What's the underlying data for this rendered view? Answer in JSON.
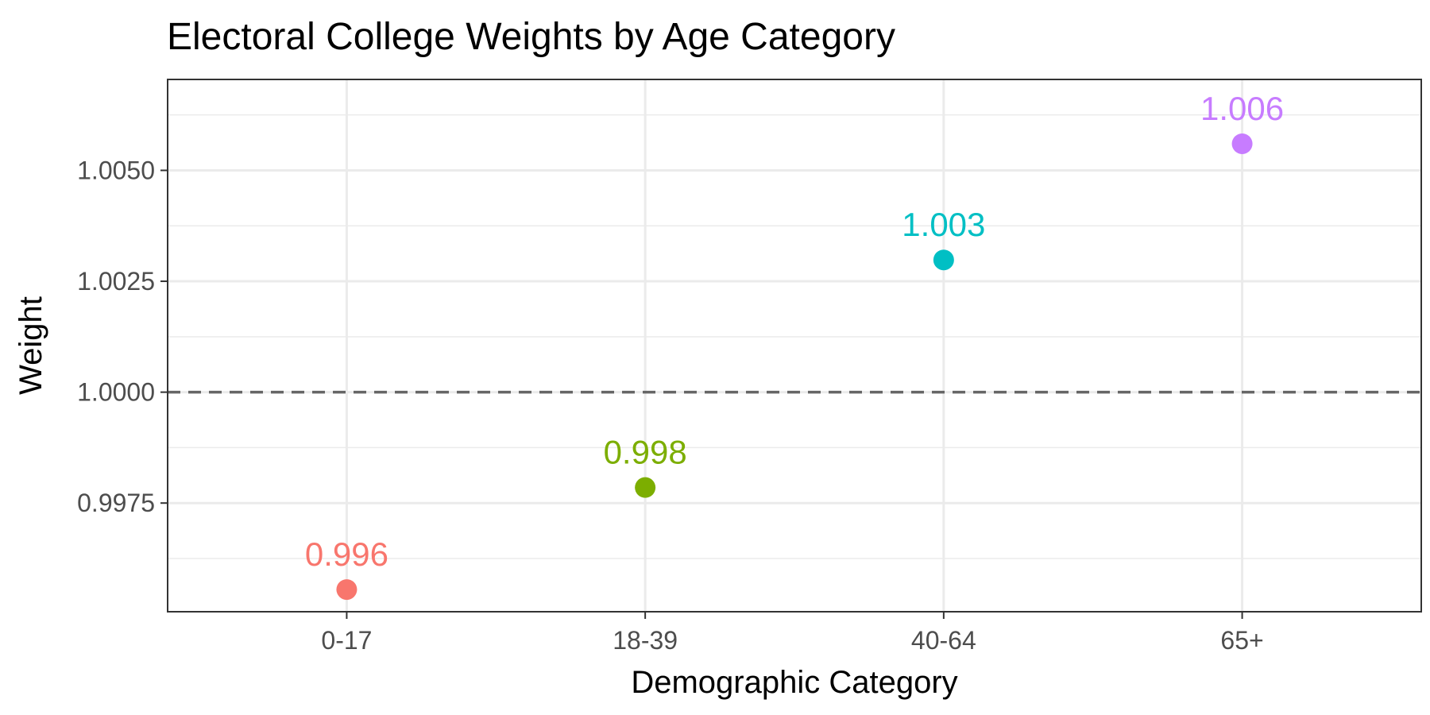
{
  "chart_data": {
    "type": "scatter",
    "title": "Electoral College Weights by Age Category",
    "xlabel": "Demographic Category",
    "ylabel": "Weight",
    "categories": [
      "0-17",
      "18-39",
      "40-64",
      "65+"
    ],
    "values": [
      0.99555,
      0.99785,
      1.00298,
      1.0056
    ],
    "data_labels": [
      "0.996",
      "0.998",
      "1.003",
      "1.006"
    ],
    "point_colors": [
      "#F8766D",
      "#7CAE00",
      "#00BFC4",
      "#C77CFF"
    ],
    "yticks": [
      0.9975,
      1.0,
      1.0025,
      1.005
    ],
    "ytick_labels": [
      "0.9975",
      "1.0000",
      "1.0025",
      "1.0050"
    ],
    "ylim": [
      0.99505,
      1.00705
    ],
    "reference_line": 1.0,
    "grid": true,
    "legend": "none"
  }
}
